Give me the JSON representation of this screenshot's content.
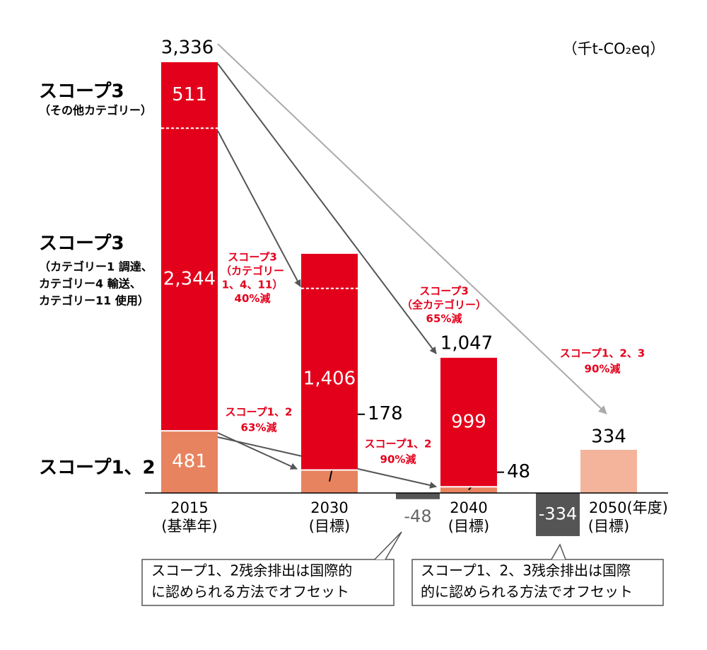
{
  "chart_data": {
    "type": "bar",
    "stacked": true,
    "unit": "（千t-CO₂eq）",
    "categories": [
      "2015",
      "2030",
      "2040",
      "2050(年度)"
    ],
    "category_notes": [
      "(基準年)",
      "(目標)",
      "(目標)",
      "(目標)"
    ],
    "ylim": [
      -400,
      3500
    ],
    "series": [
      {
        "name": "スコープ1、2",
        "color": "#e8835f",
        "colors": [
          "#e8835f",
          "#e8835f",
          "#e8835f",
          "#f3b49b"
        ],
        "values": [
          481,
          178,
          48,
          334
        ],
        "value_labels": [
          "481",
          "178",
          "48",
          "334"
        ]
      },
      {
        "name": "スコープ3",
        "detail": [
          "（カテゴリー1 調達、",
          "カテゴリー4 輸送、",
          "カテゴリー11 使用）"
        ],
        "color": "#e3001b",
        "values": [
          2344,
          1406,
          999,
          null
        ],
        "value_labels": [
          "2,344",
          "1,406",
          "999",
          null
        ]
      },
      {
        "name": "スコープ3",
        "detail": [
          "（その他カテゴリー）"
        ],
        "color": "#e3001b",
        "values": [
          511,
          268,
          null,
          null
        ],
        "value_labels": [
          "511",
          null,
          null,
          null
        ]
      }
    ],
    "totals": {
      "values": [
        3336,
        null,
        1047,
        null
      ],
      "value_labels": [
        "3,336",
        null,
        "1,047",
        null
      ]
    },
    "offsets": {
      "color": "#555555",
      "values": [
        null,
        null,
        -48,
        -334
      ],
      "value_labels": [
        null,
        null,
        "-48",
        "-334"
      ]
    },
    "annotations": [
      [
        "スコープ3",
        "（カテゴリー",
        "1、4、11）",
        "40%減"
      ],
      [
        "スコープ3",
        "（全カテゴリー）",
        "65%減"
      ],
      [
        "スコープ1、2、3",
        "90%減"
      ],
      [
        "スコープ1、2",
        "63%減"
      ],
      [
        "スコープ1、2",
        "90%減"
      ]
    ],
    "notes": [
      [
        "スコープ1、2残余排出は国際的",
        "に認められる方法でオフセット"
      ],
      [
        "スコープ1、2、3残余排出は国際",
        "的に認められる方法でオフセット"
      ]
    ]
  }
}
